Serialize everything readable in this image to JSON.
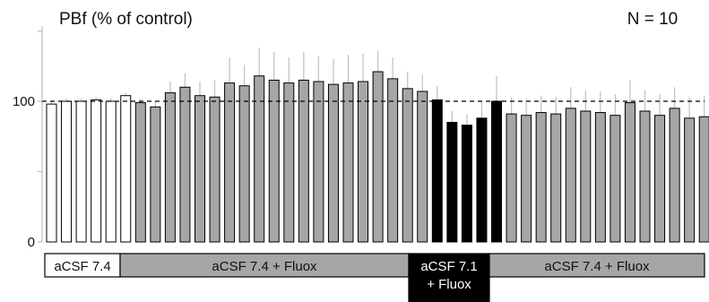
{
  "chart_data": {
    "type": "bar",
    "title": "PBf (% of control)",
    "annotation": "N = 10",
    "ylim": [
      0,
      150
    ],
    "yticks": [
      {
        "value": 0,
        "label": "0"
      },
      {
        "value": 100,
        "label": "100"
      }
    ],
    "reference_line": 100,
    "grid": false,
    "values": [
      98,
      100,
      100,
      101,
      100,
      104,
      99,
      96,
      106,
      110,
      104,
      103,
      113,
      111,
      118,
      115,
      113,
      115,
      114,
      112,
      113,
      114,
      121,
      116,
      109,
      107,
      101,
      85,
      83,
      88,
      100,
      91,
      90,
      92,
      91,
      95,
      93,
      92,
      90,
      99,
      93,
      90,
      95,
      88,
      89,
      88
    ],
    "errors": [
      2,
      2,
      2,
      2,
      2,
      2,
      3,
      4,
      8,
      10,
      10,
      12,
      18,
      15,
      20,
      20,
      18,
      20,
      18,
      18,
      20,
      20,
      15,
      15,
      12,
      12,
      10,
      8,
      8,
      12,
      18,
      12,
      12,
      12,
      12,
      15,
      15,
      15,
      15,
      16,
      15,
      15,
      15,
      15,
      15,
      15
    ],
    "groups": [
      {
        "label": "aCSF 7.4",
        "label_lines": [
          "aCSF 7.4"
        ],
        "start": 0,
        "end": 5,
        "bar_color": "#ffffff",
        "band_color": "#ffffff",
        "text_color": "#111111"
      },
      {
        "label": "aCSF 7.4 + Fluox",
        "label_lines": [
          "aCSF 7.4 + Fluox"
        ],
        "start": 6,
        "end": 26,
        "bar_color": "#a6a6a6",
        "band_color": "#a6a6a6",
        "text_color": "#111111"
      },
      {
        "label": "aCSF 7.1 + Fluox",
        "label_lines": [
          "aCSF 7.1",
          "+ Fluox"
        ],
        "start": 26,
        "end": 30,
        "bar_color": "#000000",
        "band_color": "#000000",
        "text_color": "#ffffff"
      },
      {
        "label": "aCSF 7.4 + Fluox",
        "label_lines": [
          "aCSF 7.4 + Fluox"
        ],
        "start": 31,
        "end": 45,
        "bar_color": "#a6a6a6",
        "band_color": "#a6a6a6",
        "text_color": "#111111"
      }
    ]
  }
}
